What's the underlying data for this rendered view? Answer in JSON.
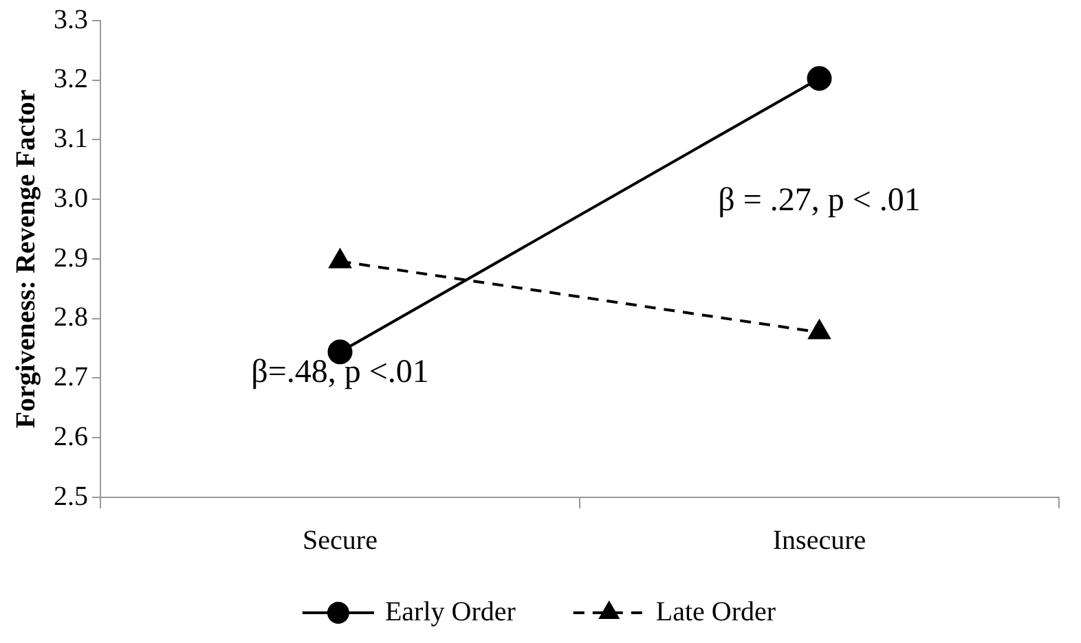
{
  "chart_data": {
    "type": "line",
    "ylabel": "Forgiveness: Revenge Factor",
    "categories": [
      "Secure",
      "Insecure"
    ],
    "series": [
      {
        "name": "Early Order",
        "color": "#000000",
        "values": [
          2.744,
          3.203
        ],
        "marker": "circle",
        "line_style": "solid"
      },
      {
        "name": "Late Order",
        "color": "#000000",
        "values": [
          2.896,
          2.777
        ],
        "marker": "triangle",
        "line_style": "dashed"
      }
    ],
    "ylim": [
      2.5,
      3.3
    ],
    "yticks": [
      2.5,
      2.6,
      2.7,
      2.8,
      2.9,
      {
        "value": 3.0,
        "label": "3.0"
      },
      3.1,
      3.2,
      3.3
    ],
    "grid": false,
    "legend": "bottom",
    "annotations": [
      "β=.48, p <.01",
      "β = .27, p < .01"
    ]
  }
}
